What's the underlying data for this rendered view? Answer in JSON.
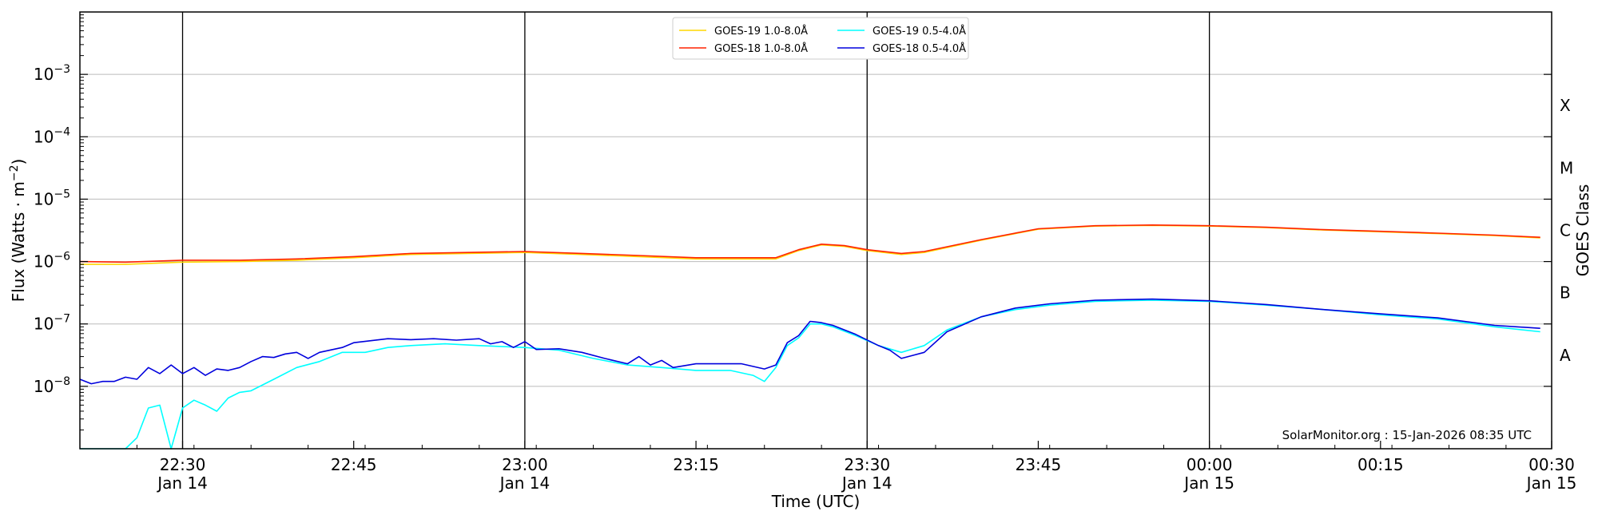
{
  "chart_data": {
    "type": "line",
    "title": "",
    "xlabel": "Time (UTC)",
    "ylabel": "Flux (Watts · m⁻²)",
    "y2label": "GOES Class",
    "yscale": "log",
    "x_range": [
      "2026-01-14 22:21",
      "2026-01-15 00:30"
    ],
    "ylim": [
      1e-09,
      0.01
    ],
    "grid": "horizontal",
    "legend_placement": "top-center",
    "annotation": "SolarMonitor.org : 15-Jan-2026 08:35 UTC",
    "x_ticks": [
      {
        "time": "2026-01-14 22:30",
        "line1": "22:30",
        "line2": "Jan 14"
      },
      {
        "time": "2026-01-14 22:45",
        "line1": "22:45",
        "line2": ""
      },
      {
        "time": "2026-01-14 23:00",
        "line1": "23:00",
        "line2": "Jan 14"
      },
      {
        "time": "2026-01-14 23:15",
        "line1": "23:15",
        "line2": ""
      },
      {
        "time": "2026-01-14 23:30",
        "line1": "23:30",
        "line2": "Jan 14"
      },
      {
        "time": "2026-01-14 23:45",
        "line1": "23:45",
        "line2": ""
      },
      {
        "time": "2026-01-15 00:00",
        "line1": "00:00",
        "line2": "Jan 15"
      },
      {
        "time": "2026-01-15 00:15",
        "line1": "00:15",
        "line2": ""
      },
      {
        "time": "2026-01-15 00:30",
        "line1": "00:30",
        "line2": "Jan 15"
      }
    ],
    "day_lines": [
      "2026-01-14 22:30",
      "2026-01-14 23:00",
      "2026-01-14 23:30",
      "2026-01-15 00:00"
    ],
    "y_ticks": [
      {
        "value": 1e-08,
        "base": "10",
        "exp": "−8"
      },
      {
        "value": 1e-07,
        "base": "10",
        "exp": "−7"
      },
      {
        "value": 1e-06,
        "base": "10",
        "exp": "−6"
      },
      {
        "value": 1e-05,
        "base": "10",
        "exp": "−5"
      },
      {
        "value": 0.0001,
        "base": "10",
        "exp": "−4"
      },
      {
        "value": 0.001,
        "base": "10",
        "exp": "−3"
      }
    ],
    "goes_classes": [
      {
        "label": "A",
        "value": 3.16e-08
      },
      {
        "label": "B",
        "value": 3.16e-07
      },
      {
        "label": "C",
        "value": 3.16e-06
      },
      {
        "label": "M",
        "value": 3.16e-05
      },
      {
        "label": "X",
        "value": 0.000316
      }
    ],
    "legend_columns": 2,
    "series": [
      {
        "name": "GOES-19 1.0-8.0Å",
        "color": "#ffd700",
        "points": [
          [
            "2026-01-14 22:21",
            9e-07
          ],
          [
            "2026-01-14 22:25",
            9e-07
          ],
          [
            "2026-01-14 22:30",
            9.8e-07
          ],
          [
            "2026-01-14 22:35",
            1e-06
          ],
          [
            "2026-01-14 22:40",
            1.05e-06
          ],
          [
            "2026-01-14 22:45",
            1.15e-06
          ],
          [
            "2026-01-14 22:50",
            1.3e-06
          ],
          [
            "2026-01-14 22:55",
            1.35e-06
          ],
          [
            "2026-01-14 23:00",
            1.4e-06
          ],
          [
            "2026-01-14 23:05",
            1.3e-06
          ],
          [
            "2026-01-14 23:10",
            1.2e-06
          ],
          [
            "2026-01-14 23:15",
            1.1e-06
          ],
          [
            "2026-01-14 23:20",
            1.1e-06
          ],
          [
            "2026-01-14 23:22",
            1.1e-06
          ],
          [
            "2026-01-14 23:24",
            1.5e-06
          ],
          [
            "2026-01-14 23:26",
            1.85e-06
          ],
          [
            "2026-01-14 23:28",
            1.75e-06
          ],
          [
            "2026-01-14 23:30",
            1.5e-06
          ],
          [
            "2026-01-14 23:33",
            1.3e-06
          ],
          [
            "2026-01-14 23:35",
            1.4e-06
          ],
          [
            "2026-01-14 23:40",
            2.2e-06
          ],
          [
            "2026-01-14 23:45",
            3.3e-06
          ],
          [
            "2026-01-14 23:50",
            3.7e-06
          ],
          [
            "2026-01-14 23:55",
            3.8e-06
          ],
          [
            "2026-01-15 00:00",
            3.7e-06
          ],
          [
            "2026-01-15 00:05",
            3.5e-06
          ],
          [
            "2026-01-15 00:10",
            3.2e-06
          ],
          [
            "2026-01-15 00:15",
            3e-06
          ],
          [
            "2026-01-15 00:20",
            2.8e-06
          ],
          [
            "2026-01-15 00:25",
            2.6e-06
          ],
          [
            "2026-01-15 00:29",
            2.4e-06
          ]
        ]
      },
      {
        "name": "GOES-18 1.0-8.0Å",
        "color": "#ff2200",
        "points": [
          [
            "2026-01-14 22:21",
            1e-06
          ],
          [
            "2026-01-14 22:25",
            9.8e-07
          ],
          [
            "2026-01-14 22:30",
            1.05e-06
          ],
          [
            "2026-01-14 22:35",
            1.05e-06
          ],
          [
            "2026-01-14 22:40",
            1.1e-06
          ],
          [
            "2026-01-14 22:45",
            1.2e-06
          ],
          [
            "2026-01-14 22:50",
            1.35e-06
          ],
          [
            "2026-01-14 22:55",
            1.4e-06
          ],
          [
            "2026-01-14 23:00",
            1.45e-06
          ],
          [
            "2026-01-14 23:05",
            1.35e-06
          ],
          [
            "2026-01-14 23:10",
            1.25e-06
          ],
          [
            "2026-01-14 23:15",
            1.15e-06
          ],
          [
            "2026-01-14 23:20",
            1.15e-06
          ],
          [
            "2026-01-14 23:22",
            1.15e-06
          ],
          [
            "2026-01-14 23:24",
            1.55e-06
          ],
          [
            "2026-01-14 23:26",
            1.9e-06
          ],
          [
            "2026-01-14 23:28",
            1.8e-06
          ],
          [
            "2026-01-14 23:30",
            1.55e-06
          ],
          [
            "2026-01-14 23:33",
            1.35e-06
          ],
          [
            "2026-01-14 23:35",
            1.45e-06
          ],
          [
            "2026-01-14 23:40",
            2.25e-06
          ],
          [
            "2026-01-14 23:45",
            3.35e-06
          ],
          [
            "2026-01-14 23:50",
            3.75e-06
          ],
          [
            "2026-01-14 23:55",
            3.85e-06
          ],
          [
            "2026-01-15 00:00",
            3.75e-06
          ],
          [
            "2026-01-15 00:05",
            3.55e-06
          ],
          [
            "2026-01-15 00:10",
            3.25e-06
          ],
          [
            "2026-01-15 00:15",
            3.05e-06
          ],
          [
            "2026-01-15 00:20",
            2.85e-06
          ],
          [
            "2026-01-15 00:25",
            2.65e-06
          ],
          [
            "2026-01-15 00:29",
            2.45e-06
          ]
        ]
      },
      {
        "name": "GOES-19 0.5-4.0Å",
        "color": "#00ffff",
        "points": [
          [
            "2026-01-14 22:21",
            1e-09
          ],
          [
            "2026-01-14 22:22",
            1e-09
          ],
          [
            "2026-01-14 22:24",
            1e-09
          ],
          [
            "2026-01-14 22:25",
            1e-09
          ],
          [
            "2026-01-14 22:26",
            1.5e-09
          ],
          [
            "2026-01-14 22:27",
            4.5e-09
          ],
          [
            "2026-01-14 22:28",
            5e-09
          ],
          [
            "2026-01-14 22:29",
            1e-09
          ],
          [
            "2026-01-14 22:30",
            4.5e-09
          ],
          [
            "2026-01-14 22:31",
            6e-09
          ],
          [
            "2026-01-14 22:32",
            5e-09
          ],
          [
            "2026-01-14 22:33",
            4e-09
          ],
          [
            "2026-01-14 22:34",
            6.5e-09
          ],
          [
            "2026-01-14 22:35",
            8e-09
          ],
          [
            "2026-01-14 22:36",
            8.5e-09
          ],
          [
            "2026-01-14 22:38",
            1.3e-08
          ],
          [
            "2026-01-14 22:40",
            2e-08
          ],
          [
            "2026-01-14 22:42",
            2.5e-08
          ],
          [
            "2026-01-14 22:44",
            3.5e-08
          ],
          [
            "2026-01-14 22:46",
            3.5e-08
          ],
          [
            "2026-01-14 22:48",
            4.2e-08
          ],
          [
            "2026-01-14 22:50",
            4.5e-08
          ],
          [
            "2026-01-14 22:53",
            4.8e-08
          ],
          [
            "2026-01-14 22:56",
            4.5e-08
          ],
          [
            "2026-01-14 23:00",
            4.2e-08
          ],
          [
            "2026-01-14 23:03",
            3.8e-08
          ],
          [
            "2026-01-14 23:06",
            2.8e-08
          ],
          [
            "2026-01-14 23:09",
            2.2e-08
          ],
          [
            "2026-01-14 23:12",
            2e-08
          ],
          [
            "2026-01-14 23:15",
            1.8e-08
          ],
          [
            "2026-01-14 23:18",
            1.8e-08
          ],
          [
            "2026-01-14 23:20",
            1.5e-08
          ],
          [
            "2026-01-14 23:21",
            1.2e-08
          ],
          [
            "2026-01-14 23:22",
            2e-08
          ],
          [
            "2026-01-14 23:23",
            4.5e-08
          ],
          [
            "2026-01-14 23:24",
            6e-08
          ],
          [
            "2026-01-14 23:25",
            1e-07
          ],
          [
            "2026-01-14 23:26",
            1e-07
          ],
          [
            "2026-01-14 23:27",
            9e-08
          ],
          [
            "2026-01-14 23:29",
            6.5e-08
          ],
          [
            "2026-01-14 23:31",
            4.5e-08
          ],
          [
            "2026-01-14 23:33",
            3.5e-08
          ],
          [
            "2026-01-14 23:35",
            4.5e-08
          ],
          [
            "2026-01-14 23:37",
            8e-08
          ],
          [
            "2026-01-14 23:40",
            1.3e-07
          ],
          [
            "2026-01-14 23:43",
            1.7e-07
          ],
          [
            "2026-01-14 23:46",
            2e-07
          ],
          [
            "2026-01-14 23:50",
            2.3e-07
          ],
          [
            "2026-01-14 23:55",
            2.4e-07
          ],
          [
            "2026-01-15 00:00",
            2.3e-07
          ],
          [
            "2026-01-15 00:05",
            2e-07
          ],
          [
            "2026-01-15 00:10",
            1.7e-07
          ],
          [
            "2026-01-15 00:15",
            1.4e-07
          ],
          [
            "2026-01-15 00:20",
            1.2e-07
          ],
          [
            "2026-01-15 00:25",
            9e-08
          ],
          [
            "2026-01-15 00:29",
            7.5e-08
          ]
        ]
      },
      {
        "name": "GOES-18 0.5-4.0Å",
        "color": "#0000dd",
        "points": [
          [
            "2026-01-14 22:21",
            1.3e-08
          ],
          [
            "2026-01-14 22:22",
            1.1e-08
          ],
          [
            "2026-01-14 22:23",
            1.2e-08
          ],
          [
            "2026-01-14 22:24",
            1.2e-08
          ],
          [
            "2026-01-14 22:25",
            1.4e-08
          ],
          [
            "2026-01-14 22:26",
            1.3e-08
          ],
          [
            "2026-01-14 22:27",
            2e-08
          ],
          [
            "2026-01-14 22:28",
            1.6e-08
          ],
          [
            "2026-01-14 22:29",
            2.2e-08
          ],
          [
            "2026-01-14 22:30",
            1.6e-08
          ],
          [
            "2026-01-14 22:31",
            2e-08
          ],
          [
            "2026-01-14 22:32",
            1.5e-08
          ],
          [
            "2026-01-14 22:33",
            1.9e-08
          ],
          [
            "2026-01-14 22:34",
            1.8e-08
          ],
          [
            "2026-01-14 22:35",
            2e-08
          ],
          [
            "2026-01-14 22:36",
            2.5e-08
          ],
          [
            "2026-01-14 22:37",
            3e-08
          ],
          [
            "2026-01-14 22:38",
            2.9e-08
          ],
          [
            "2026-01-14 22:39",
            3.3e-08
          ],
          [
            "2026-01-14 22:40",
            3.5e-08
          ],
          [
            "2026-01-14 22:41",
            2.8e-08
          ],
          [
            "2026-01-14 22:42",
            3.5e-08
          ],
          [
            "2026-01-14 22:44",
            4.2e-08
          ],
          [
            "2026-01-14 22:45",
            5e-08
          ],
          [
            "2026-01-14 22:48",
            5.8e-08
          ],
          [
            "2026-01-14 22:50",
            5.6e-08
          ],
          [
            "2026-01-14 22:52",
            5.8e-08
          ],
          [
            "2026-01-14 22:54",
            5.5e-08
          ],
          [
            "2026-01-14 22:56",
            5.8e-08
          ],
          [
            "2026-01-14 22:57",
            4.8e-08
          ],
          [
            "2026-01-14 22:58",
            5.2e-08
          ],
          [
            "2026-01-14 22:59",
            4.2e-08
          ],
          [
            "2026-01-14 23:00",
            5.2e-08
          ],
          [
            "2026-01-14 23:01",
            3.9e-08
          ],
          [
            "2026-01-14 23:03",
            4e-08
          ],
          [
            "2026-01-14 23:05",
            3.5e-08
          ],
          [
            "2026-01-14 23:07",
            2.8e-08
          ],
          [
            "2026-01-14 23:09",
            2.3e-08
          ],
          [
            "2026-01-14 23:10",
            3e-08
          ],
          [
            "2026-01-14 23:11",
            2.2e-08
          ],
          [
            "2026-01-14 23:12",
            2.6e-08
          ],
          [
            "2026-01-14 23:13",
            2e-08
          ],
          [
            "2026-01-14 23:15",
            2.3e-08
          ],
          [
            "2026-01-14 23:17",
            2.3e-08
          ],
          [
            "2026-01-14 23:19",
            2.3e-08
          ],
          [
            "2026-01-14 23:21",
            1.9e-08
          ],
          [
            "2026-01-14 23:22",
            2.2e-08
          ],
          [
            "2026-01-14 23:23",
            5e-08
          ],
          [
            "2026-01-14 23:24",
            6.5e-08
          ],
          [
            "2026-01-14 23:25",
            1.1e-07
          ],
          [
            "2026-01-14 23:26",
            1.05e-07
          ],
          [
            "2026-01-14 23:27",
            9.5e-08
          ],
          [
            "2026-01-14 23:29",
            6.8e-08
          ],
          [
            "2026-01-14 23:31",
            4.5e-08
          ],
          [
            "2026-01-14 23:32",
            3.8e-08
          ],
          [
            "2026-01-14 23:33",
            2.8e-08
          ],
          [
            "2026-01-14 23:35",
            3.5e-08
          ],
          [
            "2026-01-14 23:37",
            7.5e-08
          ],
          [
            "2026-01-14 23:40",
            1.3e-07
          ],
          [
            "2026-01-14 23:43",
            1.8e-07
          ],
          [
            "2026-01-14 23:46",
            2.1e-07
          ],
          [
            "2026-01-14 23:50",
            2.4e-07
          ],
          [
            "2026-01-14 23:55",
            2.5e-07
          ],
          [
            "2026-01-15 00:00",
            2.35e-07
          ],
          [
            "2026-01-15 00:05",
            2.05e-07
          ],
          [
            "2026-01-15 00:10",
            1.7e-07
          ],
          [
            "2026-01-15 00:15",
            1.45e-07
          ],
          [
            "2026-01-15 00:20",
            1.25e-07
          ],
          [
            "2026-01-15 00:25",
            9.5e-08
          ],
          [
            "2026-01-15 00:29",
            8.5e-08
          ]
        ]
      }
    ]
  }
}
